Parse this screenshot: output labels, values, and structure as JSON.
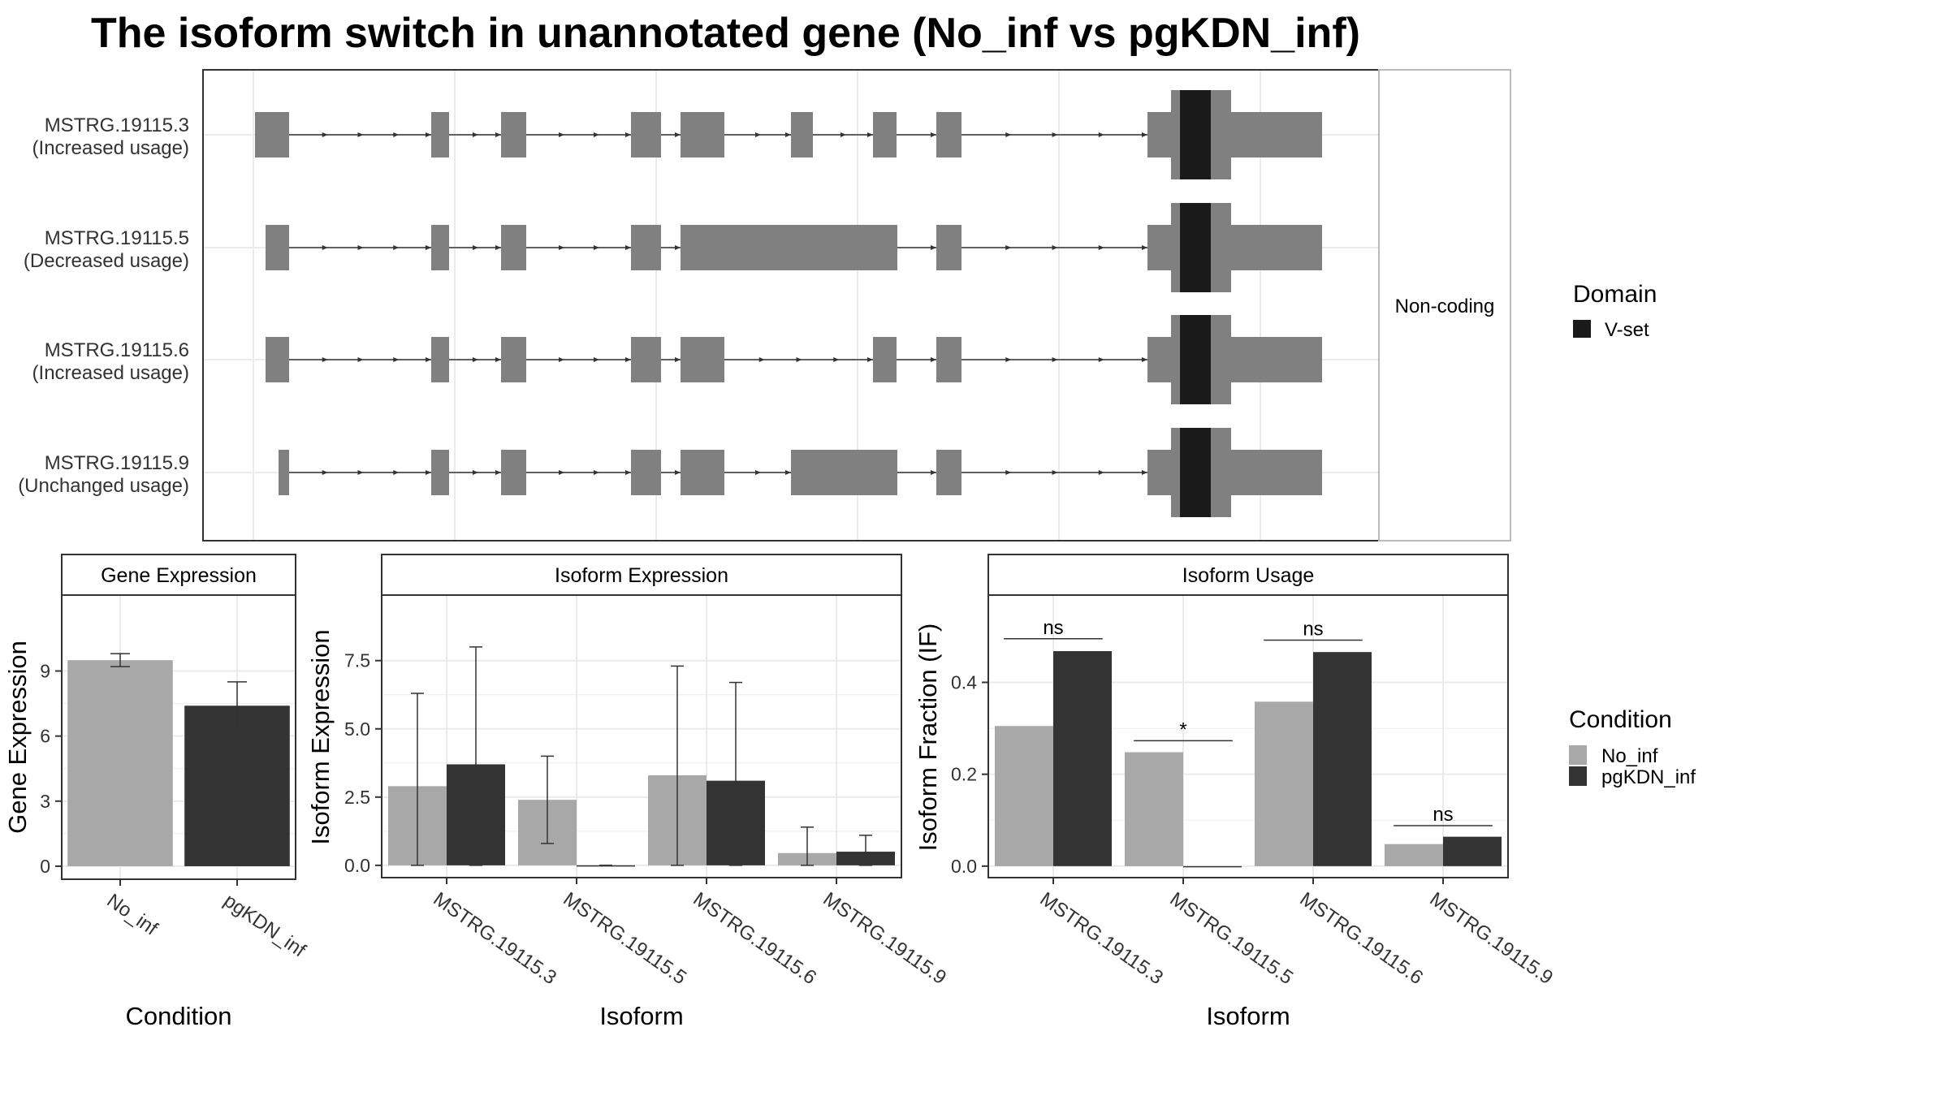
{
  "title": "The isoform switch in unannotated gene (No_inf vs pgKDN_inf)",
  "colors": {
    "No_inf": "#a8a8a8",
    "pgKDN_inf": "#333333",
    "exon": "#808080",
    "domain": "#1a1a1a",
    "grid": "#ebebeb",
    "panel_border": "#333333",
    "strip_bg": "#ffffff"
  },
  "structure": {
    "facet_label": "Non-coding",
    "tracks": [
      {
        "name": "MSTRG.19115.3",
        "status": "(Increased usage)"
      },
      {
        "name": "MSTRG.19115.5",
        "status": "(Decreased usage)"
      },
      {
        "name": "MSTRG.19115.6",
        "status": "(Increased usage)"
      },
      {
        "name": "MSTRG.19115.9",
        "status": "(Unchanged usage)"
      }
    ],
    "legend": {
      "title": "Domain",
      "items": [
        {
          "label": "V-set",
          "color": "#1a1a1a"
        }
      ]
    }
  },
  "condition_legend": {
    "title": "Condition",
    "items": [
      {
        "label": "No_inf",
        "color": "#a8a8a8"
      },
      {
        "label": "pgKDN_inf",
        "color": "#333333"
      }
    ]
  },
  "chart_data": [
    {
      "type": "bar",
      "strip": "Gene Expression",
      "xlabel": "Condition",
      "ylabel": "Gene Expression",
      "categories": [
        "No_inf",
        "pgKDN_inf"
      ],
      "values": [
        9.5,
        7.4
      ],
      "error_low": [
        9.2,
        6.3
      ],
      "error_high": [
        9.8,
        8.5
      ],
      "ylim": [
        -0.6,
        12.5
      ],
      "yticks": [
        0,
        3,
        6,
        9
      ],
      "ytick_labels": [
        "0",
        "3",
        "6",
        "9"
      ]
    },
    {
      "type": "bar",
      "strip": "Isoform Expression",
      "xlabel": "Isoform",
      "ylabel": "Isoform Expression",
      "categories": [
        "MSTRG.19115.3",
        "MSTRG.19115.5",
        "MSTRG.19115.6",
        "MSTRG.19115.9"
      ],
      "series": [
        {
          "name": "No_inf",
          "values": [
            2.9,
            2.4,
            3.3,
            0.45
          ],
          "error_low": [
            0,
            0.8,
            0,
            0
          ],
          "error_high": [
            6.3,
            4.0,
            7.3,
            1.4
          ]
        },
        {
          "name": "pgKDN_inf",
          "values": [
            3.7,
            0,
            3.1,
            0.5
          ],
          "error_low": [
            0,
            0,
            0,
            0
          ],
          "error_high": [
            8.0,
            0,
            6.7,
            1.1
          ]
        }
      ],
      "ylim": [
        -0.45,
        9.9
      ],
      "yticks": [
        0,
        2.5,
        5,
        7.5
      ],
      "ytick_labels": [
        "0.0",
        "2.5",
        "5.0",
        "7.5"
      ]
    },
    {
      "type": "bar",
      "strip": "Isoform Usage",
      "xlabel": "Isoform",
      "ylabel": "Isoform Fraction (IF)",
      "categories": [
        "MSTRG.19115.3",
        "MSTRG.19115.5",
        "MSTRG.19115.6",
        "MSTRG.19115.9"
      ],
      "series": [
        {
          "name": "No_inf",
          "values": [
            0.305,
            0.248,
            0.358,
            0.048
          ]
        },
        {
          "name": "pgKDN_inf",
          "values": [
            0.468,
            0,
            0.466,
            0.064
          ]
        }
      ],
      "significance": [
        {
          "category": "MSTRG.19115.3",
          "label": "ns",
          "y": 0.495
        },
        {
          "category": "MSTRG.19115.5",
          "label": "*",
          "y": 0.273
        },
        {
          "category": "MSTRG.19115.6",
          "label": "ns",
          "y": 0.492
        },
        {
          "category": "MSTRG.19115.9",
          "label": "ns",
          "y": 0.088
        }
      ],
      "ylim": [
        -0.025,
        0.59
      ],
      "yticks": [
        0,
        0.2,
        0.4
      ],
      "ytick_labels": [
        "0.0",
        "0.2",
        "0.4"
      ]
    }
  ]
}
